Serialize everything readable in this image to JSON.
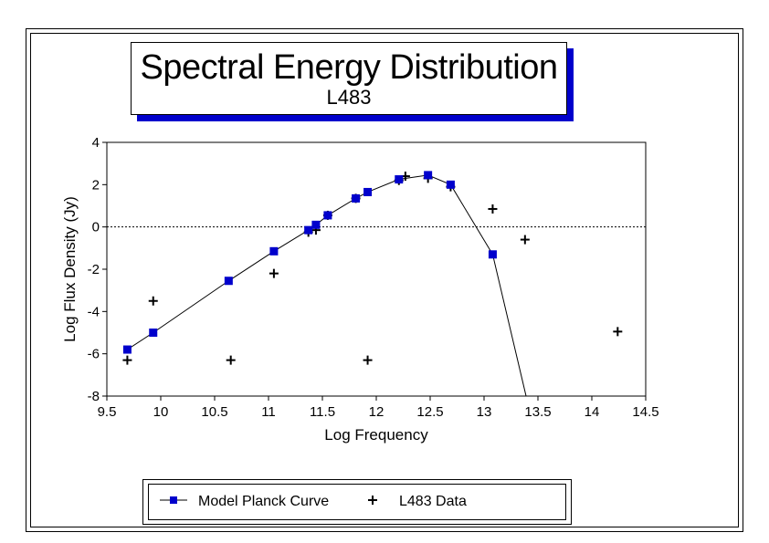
{
  "chart_data": {
    "type": "line",
    "title": "Spectral Energy Distribution",
    "subtitle": "L483",
    "xlabel": "Log Frequency",
    "ylabel": "Log Flux Density (Jy)",
    "xlim": [
      9.5,
      14.5
    ],
    "ylim": [
      -8,
      4
    ],
    "xticks": [
      "9.5",
      "10",
      "10.5",
      "11",
      "11.5",
      "12",
      "12.5",
      "13",
      "13.5",
      "14",
      "14.5"
    ],
    "yticks": [
      "4",
      "2",
      "0",
      "-2",
      "-4",
      "-6",
      "-8"
    ],
    "zero_line": true,
    "legend_position": "bottom",
    "series": [
      {
        "name": "Model Planck Curve",
        "marker": "square",
        "color": "#0000cc",
        "x": [
          9.69,
          9.93,
          10.63,
          11.05,
          11.37,
          11.44,
          11.55,
          11.81,
          11.92,
          12.21,
          12.48,
          12.69,
          13.08,
          13.39
        ],
        "y": [
          -5.8,
          -5.0,
          -2.55,
          -1.15,
          -0.15,
          0.1,
          0.55,
          1.35,
          1.65,
          2.25,
          2.45,
          2.0,
          -1.3,
          -8.0
        ],
        "marked": [
          true,
          true,
          true,
          true,
          true,
          true,
          true,
          true,
          true,
          true,
          true,
          true,
          true,
          false
        ]
      },
      {
        "name": "L483 Data",
        "marker": "plus",
        "color": "#000000",
        "x": [
          9.69,
          9.93,
          10.65,
          11.05,
          11.37,
          11.44,
          11.55,
          11.81,
          11.92,
          12.21,
          12.27,
          12.48,
          12.69,
          13.08,
          13.38,
          14.24
        ],
        "y": [
          -6.3,
          -3.5,
          -6.3,
          -2.2,
          -0.25,
          -0.15,
          0.55,
          1.35,
          -6.3,
          2.2,
          2.4,
          2.3,
          1.9,
          0.85,
          -0.6,
          -4.95
        ]
      }
    ]
  }
}
